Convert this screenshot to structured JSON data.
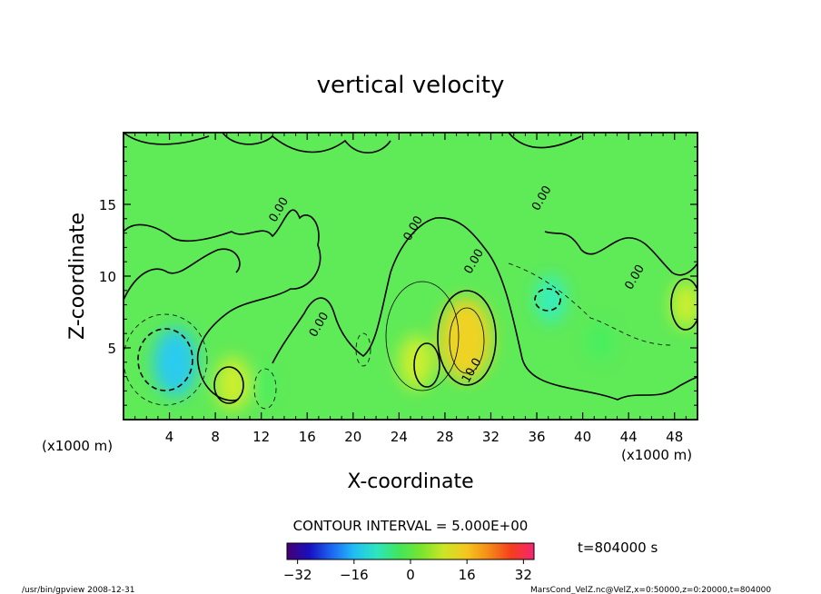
{
  "chart_data": {
    "type": "heatmap",
    "title": "vertical velocity",
    "xlabel": "X-coordinate",
    "ylabel": "Z-coordinate",
    "x_unit_left": "(x1000 m)",
    "x_unit_right": "(x1000 m)",
    "xlim": [
      0,
      50
    ],
    "ylim": [
      0,
      20
    ],
    "x_ticks": [
      4,
      8,
      12,
      16,
      20,
      24,
      28,
      32,
      36,
      40,
      44,
      48
    ],
    "y_ticks": [
      5,
      10,
      15
    ],
    "contour_interval_text": "CONTOUR INTERVAL = 5.000E+00",
    "contour_labels": [
      {
        "text": "0.00",
        "x": 13.8,
        "z": 14.5
      },
      {
        "text": "0.00",
        "x": 17.3,
        "z": 6.5
      },
      {
        "text": "0.00",
        "x": 25.5,
        "z": 13.2
      },
      {
        "text": "0.00",
        "x": 30.8,
        "z": 10.9
      },
      {
        "text": "0.00",
        "x": 36.7,
        "z": 15.3
      },
      {
        "text": "0.00",
        "x": 44.8,
        "z": 9.8
      },
      {
        "text": "10.0",
        "x": 30.6,
        "z": 3.3
      }
    ],
    "colorbar": {
      "min": -35,
      "max": 35,
      "ticks": [
        -32,
        -16,
        0,
        16,
        32
      ],
      "colors": [
        "#4a0078",
        "#1a10c8",
        "#1f6cff",
        "#22c8ff",
        "#30f0c8",
        "#44f060",
        "#80f030",
        "#d8f028",
        "#ffd020",
        "#ff9018",
        "#ff4020",
        "#ff2878"
      ]
    },
    "field_features": [
      {
        "x": 4.5,
        "z": 4.0,
        "value": -12
      },
      {
        "x": 9.5,
        "z": 2.5,
        "value": 8
      },
      {
        "x": 12.2,
        "z": 2.5,
        "value": -2
      },
      {
        "x": 25.5,
        "z": 4.0,
        "value": 8
      },
      {
        "x": 29.8,
        "z": 5.6,
        "value": 16
      },
      {
        "x": 37.2,
        "z": 8.4,
        "value": -6
      },
      {
        "x": 41.5,
        "z": 5.5,
        "value": -4
      },
      {
        "x": 49.0,
        "z": 8.0,
        "value": 6
      }
    ],
    "time_text": "t=804000  s",
    "footer_left": "/usr/bin/gpview   2008-12-31",
    "footer_right": "MarsCond_VelZ.nc@VelZ,x=0:50000,z=0:20000,t=804000"
  }
}
